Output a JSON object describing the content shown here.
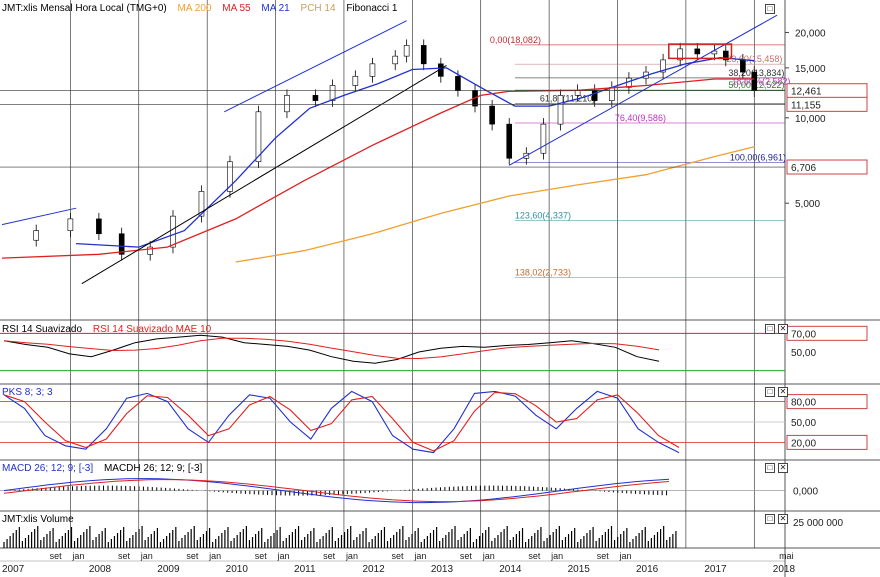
{
  "main_panel": {
    "legend": [
      {
        "label": "JMT:xlis Mensal Hora Local (TMG+0)",
        "color": "#000000"
      },
      {
        "label": "MA 200",
        "color": "#f0a030"
      },
      {
        "label": "MA 55",
        "color": "#e02020"
      },
      {
        "label": "MA 21",
        "color": "#2030d0"
      },
      {
        "label": "PCH 14",
        "color": "#c8a060"
      },
      {
        "label": "Fibonacci 1",
        "color": "#000000"
      }
    ],
    "y_ticks": [
      "20,000",
      "15,000",
      "10,000",
      "5,000"
    ],
    "price_tags": [
      "12,461",
      "11,155",
      "6,706"
    ],
    "fib_labels": [
      {
        "text": "0,00(18,082)",
        "color": "#c03030",
        "level": 18082
      },
      {
        "text": "23,60(15,458)",
        "color": "#c07070",
        "level": 15458
      },
      {
        "text": "38,20(13,834)",
        "color": "#333333",
        "level": 13834
      },
      {
        "text": "50,00(12,522)",
        "color": "#228822",
        "level": 12522
      },
      {
        "text": "61,80(11,210)",
        "color": "#333333",
        "level": 11210
      },
      {
        "text": "76,40(9,586)",
        "color": "#c030c0",
        "level": 9586
      },
      {
        "text": "100,00(6,961)",
        "color": "#2020a0",
        "level": 6961
      },
      {
        "text": "123,60(4,337)",
        "color": "#3090a0",
        "level": 4337
      },
      {
        "text": "138,02(2,733)",
        "color": "#c07030",
        "level": 2733
      }
    ],
    "overlap_label": "18,60%(2,582)"
  },
  "rsi_panel": {
    "legend": [
      {
        "label": "RSI 14 Suavizado",
        "color": "#000000"
      },
      {
        "label": "RSI 14 Suavizado MAE 10",
        "color": "#e02020"
      }
    ],
    "ticks": [
      "70,00",
      "50,00"
    ]
  },
  "pks_panel": {
    "legend": [
      {
        "label": "PKS 8; 3; 3",
        "color": "#2030d0"
      }
    ],
    "ticks": [
      "80,00",
      "50,00",
      "20,00"
    ]
  },
  "macd_panel": {
    "legend": [
      {
        "label": "MACD 26; 12; 9; [-3]",
        "color": "#2030d0"
      },
      {
        "label": "MACDH 26; 12; 9; [-3]",
        "color": "#000000"
      }
    ],
    "ticks": [
      "0,000"
    ]
  },
  "volume_panel": {
    "legend": [
      {
        "label": "JMT:xlis Volume",
        "color": "#000000"
      }
    ],
    "ticks": [
      "25 000 000"
    ]
  },
  "x_axis": {
    "months": [
      "set",
      "jan",
      "set",
      "jan",
      "set",
      "jan",
      "set",
      "jan",
      "set",
      "jan",
      "set",
      "jan",
      "set",
      "jan",
      "set",
      "jan",
      "set",
      "jan",
      "mai"
    ],
    "years": [
      "2007",
      "2008",
      "2009",
      "2010",
      "2011",
      "2012",
      "2013",
      "2014",
      "2015",
      "2016",
      "2017",
      "2018"
    ]
  },
  "chart_data": {
    "type": "line",
    "title": "JMT:xlis Mensal Hora Local (TMG+0)",
    "x_range": [
      "2007-01",
      "2018-05"
    ],
    "y_scale": "log",
    "ylim": [
      2000,
      24000
    ],
    "series": [
      {
        "name": "JMT:xlis",
        "values": [
          [
            "2007-01",
            3700
          ],
          [
            "2007-07",
            4000
          ],
          [
            "2008-01",
            4400
          ],
          [
            "2008-06",
            3900
          ],
          [
            "2008-10",
            3300
          ],
          [
            "2009-03",
            3500
          ],
          [
            "2009-07",
            4500
          ],
          [
            "2009-12",
            5500
          ],
          [
            "2010-05",
            7000
          ],
          [
            "2010-10",
            10500
          ],
          [
            "2011-03",
            12000
          ],
          [
            "2011-08",
            11500
          ],
          [
            "2011-11",
            13000
          ],
          [
            "2012-03",
            14000
          ],
          [
            "2012-06",
            15500
          ],
          [
            "2012-10",
            16500
          ],
          [
            "2012-12",
            18000
          ],
          [
            "2013-03",
            15500
          ],
          [
            "2013-06",
            14000
          ],
          [
            "2013-09",
            12500
          ],
          [
            "2013-12",
            11000
          ],
          [
            "2014-03",
            9500
          ],
          [
            "2014-06",
            7200
          ],
          [
            "2014-09",
            7500
          ],
          [
            "2014-12",
            9500
          ],
          [
            "2015-03",
            12000
          ],
          [
            "2015-06",
            12500
          ],
          [
            "2015-09",
            11500
          ],
          [
            "2015-12",
            12800
          ],
          [
            "2016-03",
            13800
          ],
          [
            "2016-06",
            14500
          ],
          [
            "2016-09",
            16000
          ],
          [
            "2016-12",
            17500
          ],
          [
            "2017-03",
            16800
          ],
          [
            "2017-06",
            17200
          ],
          [
            "2017-08",
            16000
          ],
          [
            "2017-11",
            14500
          ],
          [
            "2018-01",
            12461
          ]
        ]
      },
      {
        "name": "MA 21",
        "values": [
          [
            "2008-02",
            3600
          ],
          [
            "2009-01",
            3500
          ],
          [
            "2009-09",
            4000
          ],
          [
            "2010-06",
            6000
          ],
          [
            "2011-01",
            8500
          ],
          [
            "2011-07",
            10800
          ],
          [
            "2012-01",
            12000
          ],
          [
            "2012-07",
            13200
          ],
          [
            "2013-01",
            14800
          ],
          [
            "2013-07",
            15000
          ],
          [
            "2014-01",
            12800
          ],
          [
            "2014-07",
            11000
          ],
          [
            "2015-01",
            11000
          ],
          [
            "2015-07",
            11800
          ],
          [
            "2016-01",
            13000
          ],
          [
            "2016-07",
            14300
          ],
          [
            "2017-01",
            15500
          ],
          [
            "2017-07",
            16300
          ],
          [
            "2018-01",
            15900
          ]
        ]
      },
      {
        "name": "MA 55",
        "values": [
          [
            "2007-01",
            3200
          ],
          [
            "2008-06",
            3300
          ],
          [
            "2009-06",
            3500
          ],
          [
            "2010-06",
            4400
          ],
          [
            "2011-06",
            6000
          ],
          [
            "2012-06",
            8000
          ],
          [
            "2013-06",
            10400
          ],
          [
            "2014-01",
            12000
          ],
          [
            "2014-06",
            12400
          ],
          [
            "2015-06",
            12500
          ],
          [
            "2016-06",
            13000
          ],
          [
            "2017-06",
            13700
          ],
          [
            "2018-01",
            13700
          ]
        ]
      },
      {
        "name": "MA 200",
        "values": [
          [
            "2010-06",
            3100
          ],
          [
            "2011-06",
            3400
          ],
          [
            "2012-06",
            3900
          ],
          [
            "2013-06",
            4600
          ],
          [
            "2014-06",
            5300
          ],
          [
            "2015-06",
            5800
          ],
          [
            "2016-06",
            6300
          ],
          [
            "2017-06",
            7300
          ],
          [
            "2018-01",
            7900
          ]
        ]
      }
    ],
    "fibonacci_levels": [
      18082,
      15458,
      13834,
      12522,
      11210,
      9586,
      6961,
      4337,
      2733
    ],
    "price_markers": [
      12461,
      11155,
      6706
    ]
  }
}
